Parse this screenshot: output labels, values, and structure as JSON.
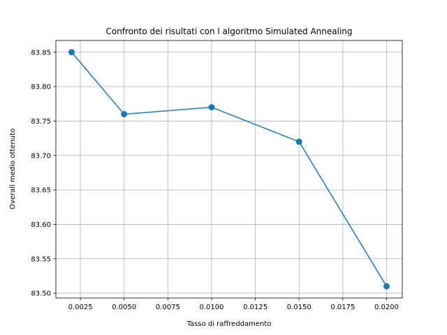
{
  "chart_data": {
    "type": "line",
    "title": "Confronto dei risultati con l algoritmo Simulated Annealing",
    "xlabel": "Tasso di raffreddamento",
    "ylabel": "Overall medio ottenuto",
    "x": [
      0.002,
      0.005,
      0.01,
      0.015,
      0.02
    ],
    "series": [
      {
        "values": [
          83.85,
          83.76,
          83.77,
          83.72,
          83.51
        ],
        "color": "#1f77b4",
        "marker": "circle"
      }
    ],
    "xlim": [
      0.0011,
      0.0209
    ],
    "ylim": [
      83.493,
      83.867
    ],
    "xticks": [
      0.0025,
      0.005,
      0.0075,
      0.01,
      0.0125,
      0.015,
      0.0175,
      0.02
    ],
    "xtick_labels": [
      "0.0025",
      "0.0050",
      "0.0075",
      "0.0100",
      "0.0125",
      "0.0150",
      "0.0175",
      "0.0200"
    ],
    "yticks": [
      83.5,
      83.55,
      83.6,
      83.65,
      83.7,
      83.75,
      83.8,
      83.85
    ],
    "ytick_labels": [
      "83.50",
      "83.55",
      "83.60",
      "83.65",
      "83.70",
      "83.75",
      "83.80",
      "83.85"
    ],
    "grid": true
  }
}
